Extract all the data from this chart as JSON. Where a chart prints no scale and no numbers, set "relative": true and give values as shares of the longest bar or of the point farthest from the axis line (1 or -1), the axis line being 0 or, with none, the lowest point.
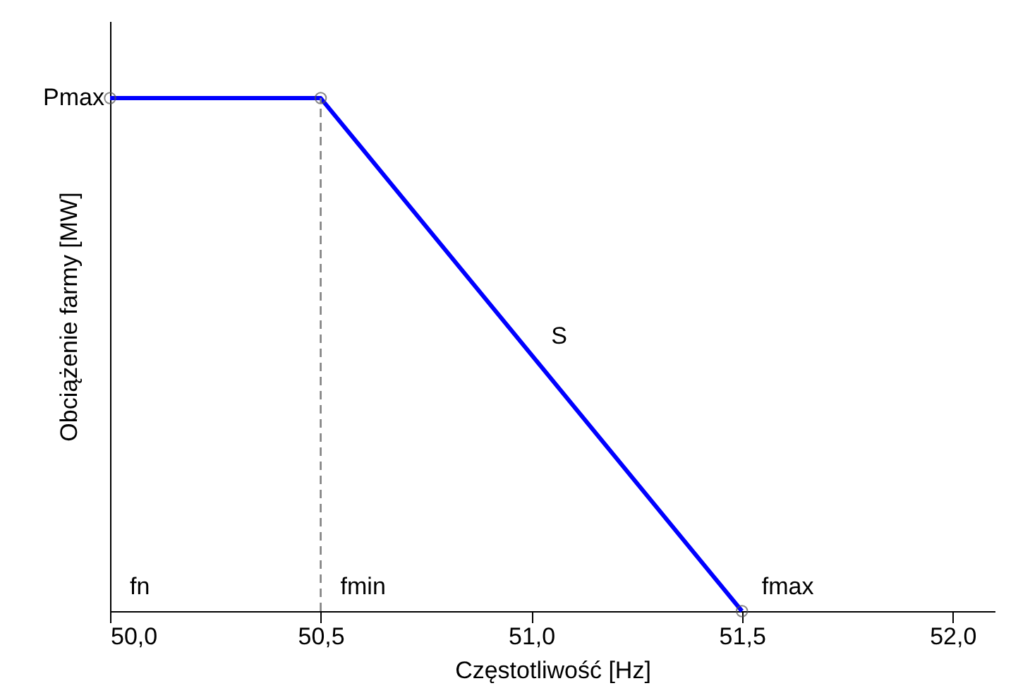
{
  "chart_data": {
    "type": "line",
    "relative": true,
    "xlabel": "Częstotliwość [Hz]",
    "ylabel": "Obciążenie farmy [MW]",
    "xlim": [
      50.0,
      52.1
    ],
    "xticks": [
      {
        "value": 50.0,
        "label": "50,0"
      },
      {
        "value": 50.5,
        "label": "50,5"
      },
      {
        "value": 51.0,
        "label": "51,0"
      },
      {
        "value": 51.5,
        "label": "51,5"
      },
      {
        "value": 52.0,
        "label": "52,0"
      }
    ],
    "series": [
      {
        "color": "#0000ff",
        "x": [
          50.0,
          50.5,
          51.5
        ],
        "values": [
          1,
          1,
          0
        ]
      }
    ],
    "marker": "circle",
    "line_style": "solid",
    "ref_lines": [
      {
        "axis": "x",
        "value": 50.5,
        "color": "#808080",
        "line_style": "dashed"
      }
    ],
    "annotations": [
      {
        "text": "Pmax",
        "x": 50.0,
        "y": 1
      },
      "fn",
      {
        "text": "fmin",
        "x": 50.5,
        "y": 0
      },
      {
        "text": "fmax",
        "x": 51.5,
        "y": 0
      },
      {
        "text": "S",
        "x": 51.0,
        "y": 0.5
      }
    ]
  }
}
